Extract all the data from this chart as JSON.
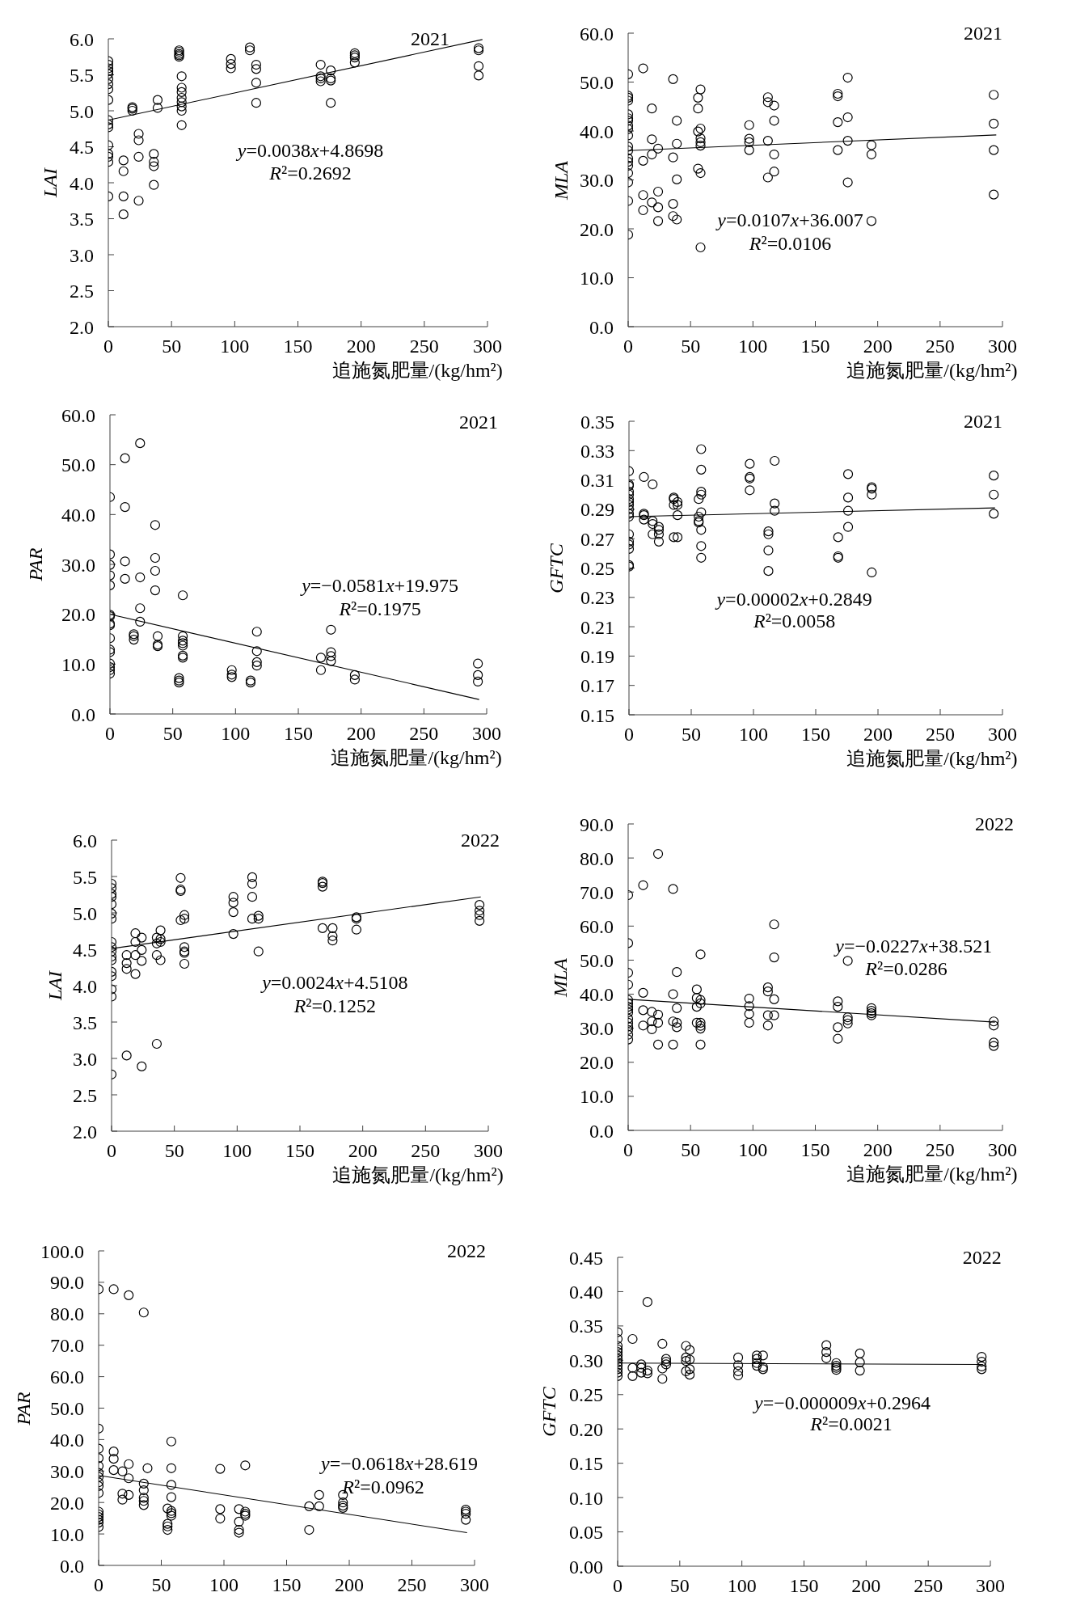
{
  "chart_data": [
    {
      "type": "scatter",
      "title": "2021",
      "xlabel": "追施氮肥量/(kg/hm²)",
      "ylabel": "LAI",
      "xlim": [
        0,
        300
      ],
      "xticks": [
        0,
        50,
        100,
        150,
        200,
        250,
        300
      ],
      "ylim": [
        2,
        6
      ],
      "yticks": [
        {
          "value": 2,
          "label": "2.0"
        },
        2.5,
        {
          "value": 3,
          "label": "3.0"
        },
        3.5,
        {
          "value": 4,
          "label": "4.0"
        },
        4.5,
        {
          "value": 5,
          "label": "5.0"
        },
        5.5,
        {
          "value": 6,
          "label": "6.0"
        }
      ],
      "annotations": [
        "y=0.0038x+4.8698",
        "R²=0.2692"
      ],
      "series": [
        {
          "color": "#000000",
          "marker": "circle",
          "x": [
            0,
            0,
            0,
            0,
            0,
            0,
            0,
            0,
            0,
            0,
            0,
            0,
            0,
            0,
            0,
            0,
            0,
            12,
            12,
            12,
            12,
            19,
            19,
            19,
            24,
            24,
            24,
            24,
            36,
            36,
            36,
            36,
            39,
            39,
            56,
            56,
            56,
            56,
            56,
            58,
            58,
            58,
            58,
            58,
            58,
            58,
            58,
            97,
            97,
            97,
            112,
            112,
            117,
            117,
            117,
            117,
            168,
            168,
            168,
            168,
            176,
            176,
            176,
            176,
            195,
            195,
            195,
            195,
            293,
            293,
            293,
            293
          ],
          "values": [
            5.69,
            5.64,
            5.59,
            5.55,
            5.51,
            5.44,
            5.37,
            5.3,
            5.15,
            4.87,
            4.81,
            4.77,
            4.52,
            4.4,
            4.36,
            4.29,
            3.81,
            4.31,
            4.16,
            3.81,
            3.56,
            5.05,
            5.03,
            5.0,
            4.68,
            4.59,
            4.36,
            3.75,
            4.4,
            4.29,
            4.23,
            3.97,
            5.15,
            5.04,
            5.84,
            5.82,
            5.79,
            5.77,
            5.75,
            5.48,
            5.32,
            5.26,
            5.18,
            5.12,
            5.06,
            5.0,
            4.8,
            5.72,
            5.65,
            5.59,
            5.88,
            5.84,
            5.64,
            5.58,
            5.39,
            5.11,
            5.64,
            5.48,
            5.45,
            5.41,
            5.56,
            5.45,
            5.42,
            5.11,
            5.8,
            5.77,
            5.74,
            5.67,
            5.87,
            5.84,
            5.62,
            5.49
          ]
        },
        {
          "type": "line",
          "color": "#000000",
          "x": [
            0,
            296
          ],
          "values": [
            4.87,
            5.99
          ]
        }
      ]
    },
    {
      "type": "scatter",
      "title": "2021",
      "xlabel": "追施氮肥量/(kg/hm²)",
      "ylabel": "MLA",
      "xlim": [
        0,
        300
      ],
      "xticks": [
        0,
        50,
        100,
        150,
        200,
        250,
        300
      ],
      "ylim": [
        0,
        60
      ],
      "yticks": [
        {
          "value": 0,
          "label": "0.0"
        },
        {
          "value": 10,
          "label": "10.0"
        },
        {
          "value": 20,
          "label": "20.0"
        },
        {
          "value": 30,
          "label": "30.0"
        },
        {
          "value": 40,
          "label": "40.0"
        },
        {
          "value": 50,
          "label": "50.0"
        },
        {
          "value": 60,
          "label": "60.0"
        }
      ],
      "annotations": [
        "y=0.0107x+36.007",
        "R²=0.0106"
      ],
      "series": [
        {
          "color": "#000000",
          "marker": "circle",
          "x": [
            0,
            0,
            0,
            0,
            0,
            0,
            0,
            0,
            0,
            0,
            0,
            0,
            0,
            0,
            0,
            0,
            0,
            0,
            0,
            12,
            12,
            12,
            12,
            19,
            19,
            19,
            19,
            24,
            24,
            24,
            24,
            36,
            36,
            36,
            36,
            39,
            39,
            39,
            39,
            56,
            56,
            56,
            56,
            58,
            58,
            58,
            58,
            58,
            58,
            58,
            97,
            97,
            97,
            97,
            112,
            112,
            112,
            112,
            117,
            117,
            117,
            117,
            168,
            168,
            168,
            168,
            176,
            176,
            176,
            176,
            195,
            195,
            195,
            293,
            293,
            293,
            293
          ],
          "values": [
            51.6,
            47.2,
            46.8,
            46.2,
            43.4,
            42.6,
            42.1,
            41.1,
            40.4,
            39.1,
            36.8,
            36.0,
            34.4,
            33.7,
            32.9,
            31.4,
            29.5,
            25.7,
            18.8,
            52.8,
            33.9,
            26.9,
            23.8,
            44.6,
            38.3,
            35.2,
            25.4,
            36.4,
            27.6,
            24.4,
            21.6,
            50.6,
            34.6,
            25.1,
            22.6,
            42.1,
            37.4,
            30.1,
            21.9,
            46.8,
            44.6,
            39.9,
            32.3,
            48.5,
            40.5,
            38.5,
            37.7,
            37.0,
            31.4,
            16.2,
            41.2,
            38.4,
            37.7,
            36.1,
            46.9,
            45.9,
            38.0,
            30.5,
            45.2,
            42.1,
            35.2,
            31.7,
            47.6,
            47.1,
            41.8,
            36.1,
            50.9,
            42.8,
            38.0,
            29.5,
            37.1,
            35.2,
            21.6,
            47.4,
            41.5,
            36.1,
            27.0
          ]
        },
        {
          "type": "line",
          "color": "#000000",
          "x": [
            0,
            295
          ],
          "values": [
            36.0,
            39.2
          ]
        }
      ]
    },
    {
      "type": "scatter",
      "title": "2021",
      "xlabel": "追施氮肥量/(kg/hm²)",
      "ylabel": "PAR",
      "xlim": [
        0,
        300
      ],
      "xticks": [
        0,
        50,
        100,
        150,
        200,
        250,
        300
      ],
      "ylim": [
        0,
        60
      ],
      "yticks": [
        {
          "value": 0,
          "label": "0.0"
        },
        {
          "value": 10,
          "label": "10.0"
        },
        {
          "value": 20,
          "label": "20.0"
        },
        {
          "value": 30,
          "label": "30.0"
        },
        {
          "value": 40,
          "label": "40.0"
        },
        {
          "value": 50,
          "label": "50.0"
        },
        {
          "value": 60,
          "label": "60.0"
        }
      ],
      "annotations": [
        "y=−0.0581x+19.975",
        "R²=0.1975"
      ],
      "series": [
        {
          "color": "#000000",
          "marker": "circle",
          "x": [
            0,
            0,
            0,
            0,
            0,
            0,
            0,
            0,
            0,
            0,
            0,
            0,
            0,
            0,
            0,
            0,
            12,
            12,
            12,
            12,
            19,
            19,
            19,
            24,
            24,
            24,
            24,
            36,
            36,
            36,
            36,
            38,
            38,
            38,
            55,
            55,
            55,
            58,
            58,
            58,
            58,
            58,
            58,
            58,
            97,
            97,
            97,
            112,
            112,
            117,
            117,
            117,
            117,
            168,
            168,
            176,
            176,
            176,
            176,
            195,
            195,
            293,
            293,
            293
          ],
          "values": [
            43.5,
            32.0,
            29.9,
            27.8,
            25.8,
            19.9,
            19.6,
            18.1,
            17.8,
            15.2,
            12.9,
            12.4,
            10.1,
            9.4,
            8.8,
            8.1,
            51.3,
            41.5,
            30.6,
            27.1,
            16.0,
            15.6,
            14.9,
            54.3,
            27.4,
            21.2,
            18.5,
            37.9,
            31.3,
            28.7,
            24.8,
            15.6,
            13.9,
            13.6,
            7.2,
            6.7,
            6.3,
            23.8,
            15.6,
            14.7,
            14.2,
            13.7,
            11.7,
            11.3,
            8.8,
            7.9,
            7.4,
            6.7,
            6.3,
            16.5,
            12.6,
            10.4,
            9.7,
            11.3,
            8.8,
            16.9,
            12.4,
            11.6,
            10.6,
            7.8,
            6.9,
            10.1,
            7.8,
            6.5
          ]
        },
        {
          "type": "line",
          "color": "#000000",
          "x": [
            0,
            294
          ],
          "values": [
            20.0,
            2.9
          ]
        }
      ]
    },
    {
      "type": "scatter",
      "title": "2021",
      "xlabel": "追施氮肥量/(kg/hm²)",
      "ylabel": "GFTC",
      "xlim": [
        0,
        300
      ],
      "xticks": [
        0,
        50,
        100,
        150,
        200,
        250,
        300
      ],
      "ylim": [
        0.15,
        0.35
      ],
      "yticks": [
        0.15,
        0.17,
        0.19,
        0.21,
        0.23,
        0.25,
        0.27,
        0.29,
        0.31,
        0.33,
        0.35
      ],
      "annotations": [
        "y=0.00002x+0.2849",
        "R²=0.0058"
      ],
      "series": [
        {
          "color": "#000000",
          "marker": "circle",
          "x": [
            0,
            0,
            0,
            0,
            0,
            0,
            0,
            0,
            0,
            0,
            0,
            0,
            0,
            0,
            0,
            0,
            0,
            12,
            12,
            12,
            12,
            19,
            19,
            19,
            19,
            24,
            24,
            24,
            24,
            36,
            36,
            36,
            36,
            39,
            39,
            39,
            39,
            56,
            56,
            56,
            56,
            58,
            58,
            58,
            58,
            58,
            58,
            58,
            58,
            97,
            97,
            97,
            97,
            112,
            112,
            112,
            112,
            117,
            117,
            117,
            168,
            168,
            168,
            176,
            176,
            176,
            176,
            195,
            195,
            195,
            195,
            293,
            293,
            293
          ],
          "values": [
            0.316,
            0.307,
            0.306,
            0.302,
            0.3,
            0.297,
            0.295,
            0.293,
            0.29,
            0.287,
            0.285,
            0.273,
            0.268,
            0.266,
            0.263,
            0.252,
            0.251,
            0.312,
            0.287,
            0.286,
            0.283,
            0.307,
            0.282,
            0.28,
            0.273,
            0.278,
            0.276,
            0.273,
            0.268,
            0.298,
            0.297,
            0.293,
            0.271,
            0.295,
            0.293,
            0.286,
            0.271,
            0.297,
            0.285,
            0.282,
            0.281,
            0.331,
            0.317,
            0.302,
            0.3,
            0.288,
            0.276,
            0.265,
            0.257,
            0.321,
            0.312,
            0.311,
            0.303,
            0.275,
            0.273,
            0.262,
            0.248,
            0.323,
            0.294,
            0.289,
            0.271,
            0.258,
            0.257,
            0.314,
            0.298,
            0.289,
            0.278,
            0.305,
            0.304,
            0.3,
            0.247,
            0.313,
            0.3,
            0.287
          ]
        },
        {
          "type": "line",
          "color": "#000000",
          "x": [
            0,
            294
          ],
          "values": [
            0.285,
            0.291
          ]
        }
      ]
    },
    {
      "type": "scatter",
      "title": "2022",
      "xlabel": "追施氮肥量/(kg/hm²)",
      "ylabel": "LAI",
      "xlim": [
        0,
        300
      ],
      "xticks": [
        0,
        50,
        100,
        150,
        200,
        250,
        300
      ],
      "ylim": [
        2,
        6
      ],
      "yticks": [
        {
          "value": 2,
          "label": "2.0"
        },
        2.5,
        {
          "value": 3,
          "label": "3.0"
        },
        3.5,
        {
          "value": 4,
          "label": "4.0"
        },
        4.5,
        {
          "value": 5,
          "label": "5.0"
        },
        5.5,
        {
          "value": 6,
          "label": "6.0"
        }
      ],
      "annotations": [
        "y=0.0024x+4.5108",
        "R²=0.1252"
      ],
      "series": [
        {
          "color": "#000000",
          "marker": "circle",
          "x": [
            0,
            0,
            0,
            0,
            0,
            0,
            0,
            0,
            0,
            0,
            0,
            0,
            0,
            0,
            0,
            0,
            0,
            12,
            12,
            12,
            12,
            19,
            19,
            19,
            19,
            24,
            24,
            24,
            24,
            36,
            36,
            36,
            36,
            39,
            39,
            39,
            39,
            55,
            55,
            55,
            55,
            58,
            58,
            58,
            58,
            58,
            58,
            97,
            97,
            97,
            97,
            112,
            112,
            112,
            112,
            117,
            117,
            117,
            168,
            168,
            168,
            168,
            176,
            176,
            176,
            195,
            195,
            195,
            293,
            293,
            293,
            293
          ],
          "values": [
            5.4,
            5.34,
            5.26,
            5.22,
            5.12,
            4.99,
            4.92,
            4.6,
            4.53,
            4.47,
            4.4,
            4.35,
            4.19,
            4.13,
            3.95,
            3.85,
            2.78,
            4.42,
            4.31,
            4.23,
            3.04,
            4.72,
            4.6,
            4.42,
            4.16,
            4.66,
            4.49,
            4.34,
            2.89,
            4.66,
            4.58,
            4.42,
            3.2,
            4.76,
            4.64,
            4.6,
            4.35,
            5.48,
            5.32,
            5.3,
            4.9,
            4.97,
            4.92,
            4.53,
            4.47,
            4.45,
            4.3,
            5.22,
            5.14,
            5.01,
            4.71,
            5.49,
            5.4,
            5.22,
            4.92,
            4.96,
            4.92,
            4.47,
            5.43,
            5.41,
            5.36,
            4.79,
            4.79,
            4.68,
            4.62,
            4.94,
            4.92,
            4.77,
            5.11,
            5.03,
            4.97,
            4.89
          ]
        },
        {
          "type": "line",
          "color": "#000000",
          "x": [
            0,
            294
          ],
          "values": [
            4.51,
            5.22
          ]
        }
      ]
    },
    {
      "type": "scatter",
      "title": "2022",
      "xlabel": "追施氮肥量/(kg/hm²)",
      "ylabel": "MLA",
      "xlim": [
        0,
        300
      ],
      "xticks": [
        0,
        50,
        100,
        150,
        200,
        250,
        300
      ],
      "ylim": [
        0,
        90
      ],
      "yticks": [
        {
          "value": 0,
          "label": "0.0"
        },
        {
          "value": 10,
          "label": "10.0"
        },
        {
          "value": 20,
          "label": "20.0"
        },
        {
          "value": 30,
          "label": "30.0"
        },
        {
          "value": 40,
          "label": "40.0"
        },
        {
          "value": 50,
          "label": "50.0"
        },
        {
          "value": 60,
          "label": "60.0"
        },
        {
          "value": 70,
          "label": "70.0"
        },
        {
          "value": 80,
          "label": "80.0"
        },
        {
          "value": 90,
          "label": "90.0"
        }
      ],
      "annotations": [
        "y=−0.0227x+38.521",
        "R²=0.0286"
      ],
      "series": [
        {
          "color": "#000000",
          "marker": "circle",
          "x": [
            0,
            0,
            0,
            0,
            0,
            0,
            0,
            0,
            0,
            0,
            0,
            0,
            0,
            0,
            0,
            12,
            12,
            12,
            12,
            19,
            19,
            19,
            24,
            24,
            24,
            24,
            36,
            36,
            36,
            36,
            39,
            39,
            39,
            39,
            55,
            55,
            55,
            55,
            58,
            58,
            58,
            58,
            58,
            58,
            58,
            97,
            97,
            97,
            97,
            112,
            112,
            112,
            112,
            117,
            117,
            117,
            117,
            168,
            168,
            168,
            168,
            176,
            176,
            176,
            176,
            195,
            195,
            195,
            195,
            293,
            293,
            293,
            293
          ],
          "values": [
            69.1,
            55.0,
            46.3,
            42.8,
            38.3,
            37.3,
            36.3,
            35.5,
            34.6,
            32.8,
            31.6,
            30.5,
            29.5,
            28.1,
            26.7,
            72.0,
            40.4,
            35.3,
            30.8,
            34.8,
            32.0,
            29.7,
            81.2,
            34.0,
            31.6,
            25.2,
            70.9,
            40.0,
            32.0,
            25.2,
            46.5,
            35.9,
            31.6,
            30.3,
            41.4,
            38.9,
            36.3,
            31.6,
            51.7,
            38.3,
            37.3,
            31.6,
            30.7,
            29.9,
            25.2,
            38.7,
            36.5,
            34.2,
            31.6,
            42.0,
            40.8,
            33.8,
            30.8,
            60.5,
            50.8,
            38.5,
            33.8,
            37.9,
            36.3,
            30.3,
            26.9,
            49.8,
            33.2,
            32.4,
            31.4,
            35.9,
            35.1,
            34.4,
            33.8,
            32.0,
            30.8,
            25.8,
            24.8
          ]
        },
        {
          "type": "line",
          "color": "#000000",
          "x": [
            0,
            294
          ],
          "values": [
            38.5,
            31.8
          ]
        }
      ]
    },
    {
      "type": "scatter",
      "title": "2022",
      "ylabel": "PAR",
      "xlim": [
        0,
        300
      ],
      "xticks": [
        0,
        50,
        100,
        150,
        200,
        250,
        300
      ],
      "ylim": [
        0,
        100
      ],
      "yticks": [
        {
          "value": 0,
          "label": "0.0"
        },
        {
          "value": 10,
          "label": "10.0"
        },
        {
          "value": 20,
          "label": "20.0"
        },
        {
          "value": 30,
          "label": "30.0"
        },
        {
          "value": 40,
          "label": "40.0"
        },
        {
          "value": 50,
          "label": "50.0"
        },
        {
          "value": 60,
          "label": "60.0"
        },
        {
          "value": 70,
          "label": "70.0"
        },
        {
          "value": 80,
          "label": "80.0"
        },
        {
          "value": 90,
          "label": "90.0"
        },
        {
          "value": 100,
          "label": "100.0"
        }
      ],
      "annotations": [
        "y=−0.0618x+28.619",
        "R²=0.0962"
      ],
      "series": [
        {
          "color": "#000000",
          "marker": "circle",
          "x": [
            0,
            0,
            0,
            0,
            0,
            0,
            0,
            0,
            0,
            0,
            0,
            0,
            0,
            0,
            0,
            0,
            12,
            12,
            12,
            12,
            19,
            19,
            19,
            24,
            24,
            24,
            24,
            36,
            36,
            36,
            36,
            36,
            36,
            39,
            55,
            55,
            55,
            55,
            58,
            58,
            58,
            58,
            58,
            58,
            58,
            97,
            97,
            97,
            112,
            112,
            112,
            112,
            117,
            117,
            117,
            117,
            168,
            168,
            176,
            176,
            195,
            195,
            195,
            195,
            293,
            293,
            293,
            293
          ],
          "values": [
            87.8,
            43.5,
            37.1,
            34.1,
            31.6,
            29.4,
            28.1,
            26.4,
            25.2,
            23.0,
            17.1,
            16.2,
            15.4,
            14.5,
            13.6,
            12.2,
            87.8,
            36.2,
            33.9,
            30.3,
            29.9,
            22.8,
            20.9,
            85.9,
            32.2,
            27.7,
            22.4,
            80.4,
            26.0,
            23.9,
            21.5,
            20.5,
            19.2,
            30.9,
            18.1,
            13.2,
            12.4,
            11.3,
            39.4,
            30.9,
            25.6,
            21.7,
            17.3,
            16.6,
            15.8,
            30.7,
            17.9,
            14.9,
            17.9,
            13.9,
            11.3,
            10.4,
            31.8,
            17.1,
            16.4,
            15.8,
            18.8,
            11.3,
            22.4,
            18.8,
            22.4,
            20.0,
            19.0,
            18.3,
            17.7,
            17.1,
            16.4,
            14.5
          ]
        },
        {
          "type": "line",
          "color": "#000000",
          "x": [
            0,
            294
          ],
          "values": [
            28.6,
            10.4
          ]
        }
      ]
    },
    {
      "type": "scatter",
      "title": "2022",
      "ylabel": "GFTC",
      "xlim": [
        0,
        300
      ],
      "xticks": [
        0,
        50,
        100,
        150,
        200,
        250,
        300
      ],
      "ylim": [
        0,
        0.45
      ],
      "yticks": [
        {
          "value": 0,
          "label": "0.00"
        },
        0.05,
        {
          "value": 0.1,
          "label": "0.10"
        },
        0.15,
        {
          "value": 0.2,
          "label": "0.20"
        },
        0.25,
        {
          "value": 0.3,
          "label": "0.30"
        },
        0.35,
        {
          "value": 0.4,
          "label": "0.40"
        },
        0.45
      ],
      "annotations": [
        "y=−0.000009x+0.2964",
        "R²=0.0021"
      ],
      "series": [
        {
          "color": "#000000",
          "marker": "circle",
          "x": [
            0,
            0,
            0,
            0,
            0,
            0,
            0,
            0,
            0,
            0,
            0,
            0,
            12,
            12,
            12,
            19,
            19,
            19,
            24,
            24,
            24,
            36,
            36,
            36,
            39,
            39,
            39,
            55,
            55,
            55,
            55,
            58,
            58,
            58,
            58,
            97,
            97,
            97,
            97,
            112,
            112,
            112,
            112,
            117,
            117,
            117,
            168,
            168,
            168,
            176,
            176,
            176,
            176,
            195,
            195,
            195,
            293,
            293,
            293,
            293
          ],
          "values": [
            0.341,
            0.331,
            0.321,
            0.316,
            0.312,
            0.307,
            0.302,
            0.297,
            0.292,
            0.287,
            0.282,
            0.277,
            0.331,
            0.289,
            0.277,
            0.294,
            0.289,
            0.282,
            0.385,
            0.285,
            0.281,
            0.324,
            0.288,
            0.273,
            0.302,
            0.298,
            0.294,
            0.321,
            0.304,
            0.299,
            0.284,
            0.315,
            0.301,
            0.287,
            0.279,
            0.304,
            0.293,
            0.284,
            0.278,
            0.307,
            0.302,
            0.296,
            0.292,
            0.307,
            0.29,
            0.287,
            0.322,
            0.312,
            0.303,
            0.296,
            0.292,
            0.289,
            0.286,
            0.31,
            0.297,
            0.285,
            0.305,
            0.298,
            0.291,
            0.287
          ]
        },
        {
          "type": "line",
          "color": "#000000",
          "x": [
            0,
            294
          ],
          "values": [
            0.296,
            0.294
          ]
        }
      ]
    }
  ]
}
